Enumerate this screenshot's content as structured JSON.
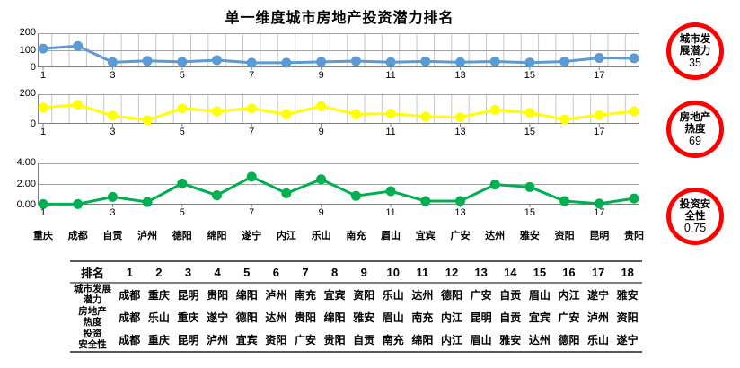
{
  "title": "单一维度城市房地产投资潜力排名",
  "colors": {
    "series_city_potential": "#5B9BD5",
    "series_realestate_heat": "#FFFF00",
    "series_invest_safety": "#00B050",
    "badge_ring": "#FF0000",
    "grid_minor": "#c6c6c6",
    "grid_major": "#a3a3a3",
    "axis": "#808080"
  },
  "chart_data": [
    {
      "type": "line",
      "name": "城市发展潜力",
      "color": "#5B9BD5",
      "x": [
        1,
        2,
        3,
        4,
        5,
        6,
        7,
        8,
        9,
        10,
        11,
        12,
        13,
        14,
        15,
        16,
        17,
        18
      ],
      "values": [
        110,
        125,
        30,
        38,
        32,
        42,
        27,
        27,
        32,
        37,
        30,
        35,
        30,
        34,
        28,
        34,
        55,
        53
      ],
      "ylim": [
        0,
        200
      ],
      "y_tick_labels": [
        "200",
        "100",
        "0"
      ],
      "y_gridlines": [
        100,
        200
      ],
      "x_tick_labels": [
        "1",
        "3",
        "5",
        "7",
        "9",
        "11",
        "13",
        "15",
        "17"
      ],
      "vertical_grid": true,
      "legend": "none"
    },
    {
      "type": "line",
      "name": "房地产热度",
      "color": "#FFFF00",
      "x": [
        1,
        2,
        3,
        4,
        5,
        6,
        7,
        8,
        9,
        10,
        11,
        12,
        13,
        14,
        15,
        16,
        17,
        18
      ],
      "values": [
        110,
        130,
        55,
        25,
        105,
        85,
        105,
        65,
        120,
        65,
        70,
        50,
        45,
        95,
        75,
        30,
        60,
        85
      ],
      "ylim": [
        0,
        200
      ],
      "y_tick_labels": [
        "200",
        "0"
      ],
      "y_gridlines": [
        200
      ],
      "x_tick_labels": [
        "1",
        "3",
        "5",
        "7",
        "9",
        "11",
        "13",
        "15",
        "17"
      ],
      "vertical_grid": true,
      "legend": "none"
    },
    {
      "type": "line",
      "name": "投资安全性",
      "color": "#00B050",
      "x": [
        1,
        2,
        3,
        4,
        5,
        6,
        7,
        8,
        9,
        10,
        11,
        12,
        13,
        14,
        15,
        16,
        17,
        18
      ],
      "values": [
        0.05,
        0.05,
        0.75,
        0.25,
        2.05,
        0.9,
        2.7,
        1.1,
        2.45,
        0.85,
        1.3,
        0.35,
        0.35,
        1.95,
        1.7,
        0.35,
        0.1,
        0.6
      ],
      "ylim": [
        0,
        4
      ],
      "y_tick_labels": [
        "4.00",
        "2.00",
        "0.00"
      ],
      "y_gridlines": [
        2,
        4
      ],
      "x_tick_labels": [
        "1",
        "3",
        "5",
        "7",
        "9",
        "11",
        "13",
        "15",
        "17"
      ],
      "vertical_grid": false,
      "legend": "none",
      "city_labels": [
        "重庆",
        "成都",
        "自贡",
        "泸州",
        "德阳",
        "绵阳",
        "遂宁",
        "内江",
        "乐山",
        "南充",
        "眉山",
        "宜宾",
        "广安",
        "达州",
        "雅安",
        "资阳",
        "昆明",
        "贵阳"
      ]
    }
  ],
  "badges": [
    {
      "name": "城市发展潜力",
      "lines": [
        "城市发",
        "展潜力"
      ],
      "value": "35"
    },
    {
      "name": "房地产热度",
      "lines": [
        "房地产",
        "热度"
      ],
      "value": "69"
    },
    {
      "name": "投资安全性",
      "lines": [
        "投资安",
        "全性"
      ],
      "value": "0.75"
    }
  ],
  "table": {
    "header": [
      "排名",
      "1",
      "2",
      "3",
      "4",
      "5",
      "6",
      "7",
      "8",
      "9",
      "10",
      "11",
      "12",
      "13",
      "14",
      "15",
      "16",
      "17",
      "18"
    ],
    "rows": [
      {
        "label_lines": [
          "城市发展",
          "潜力"
        ],
        "cells": [
          "成都",
          "重庆",
          "昆明",
          "贵阳",
          "绵阳",
          "泸州",
          "南充",
          "宜宾",
          "资阳",
          "乐山",
          "达州",
          "德阳",
          "广安",
          "自贡",
          "眉山",
          "内江",
          "遂宁",
          "雅安"
        ]
      },
      {
        "label_lines": [
          "房地产",
          "热度"
        ],
        "cells": [
          "成都",
          "乐山",
          "重庆",
          "遂宁",
          "德阳",
          "达州",
          "贵阳",
          "绵阳",
          "雅安",
          "眉山",
          "南充",
          "内江",
          "昆明",
          "自贡",
          "宜宾",
          "广安",
          "泸州",
          "资阳"
        ]
      },
      {
        "label_lines": [
          "投资",
          "安全性"
        ],
        "cells": [
          "成都",
          "重庆",
          "昆明",
          "泸州",
          "宜宾",
          "资阳",
          "广安",
          "贵阳",
          "自贡",
          "南充",
          "绵阳",
          "内江",
          "眉山",
          "雅安",
          "达州",
          "德阳",
          "乐山",
          "遂宁"
        ]
      }
    ]
  }
}
